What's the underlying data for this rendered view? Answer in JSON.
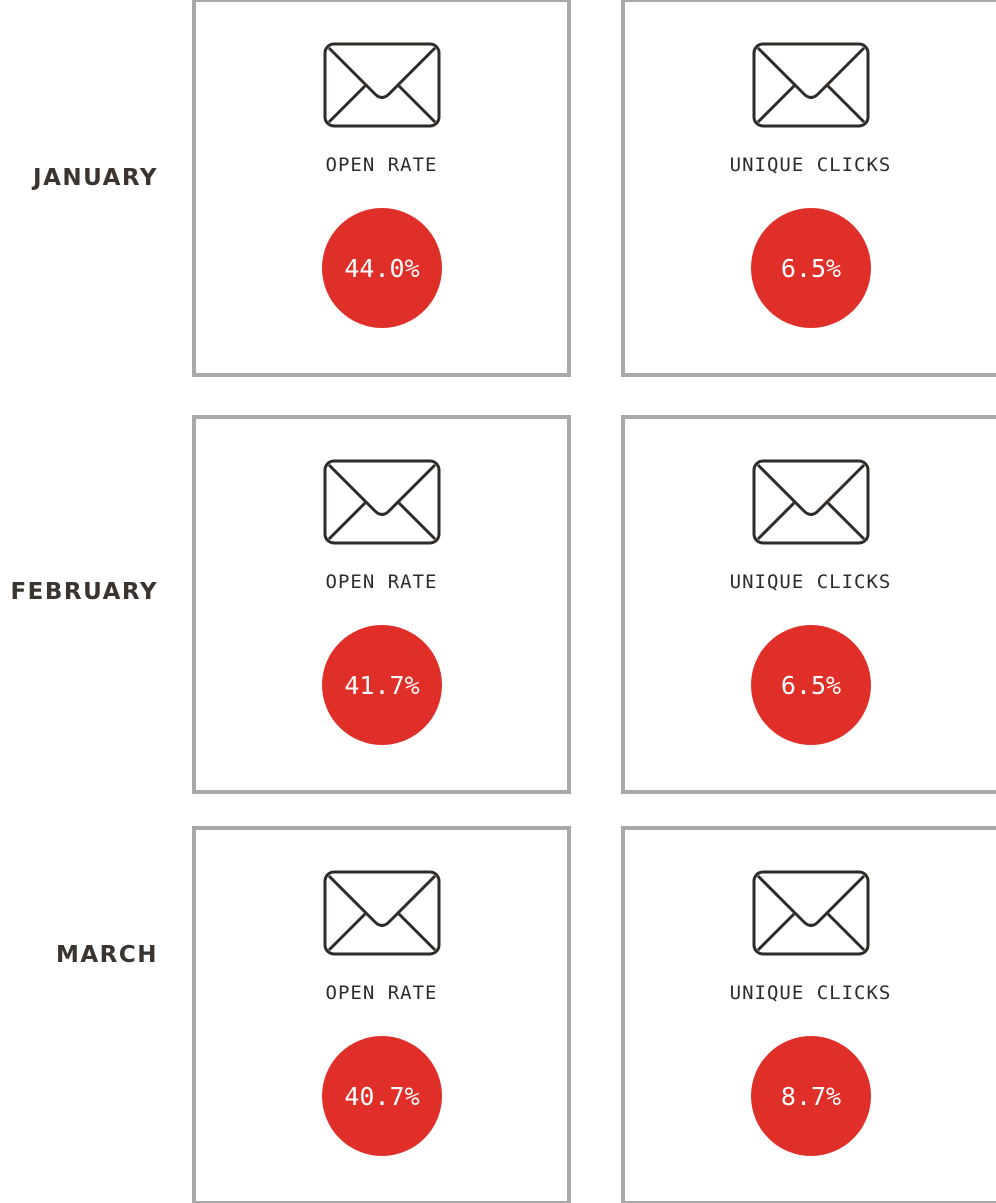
{
  "rows": [
    {
      "month": "JANUARY",
      "cards": [
        {
          "label": "OPEN RATE",
          "value": "44.0%"
        },
        {
          "label": "UNIQUE CLICKS",
          "value": "6.5%"
        }
      ]
    },
    {
      "month": "FEBRUARY",
      "cards": [
        {
          "label": "OPEN RATE",
          "value": "41.7%"
        },
        {
          "label": "UNIQUE CLICKS",
          "value": "6.5%"
        }
      ]
    },
    {
      "month": "MARCH",
      "cards": [
        {
          "label": "OPEN RATE",
          "value": "40.7%"
        },
        {
          "label": "UNIQUE CLICKS",
          "value": "8.7%"
        }
      ]
    }
  ]
}
